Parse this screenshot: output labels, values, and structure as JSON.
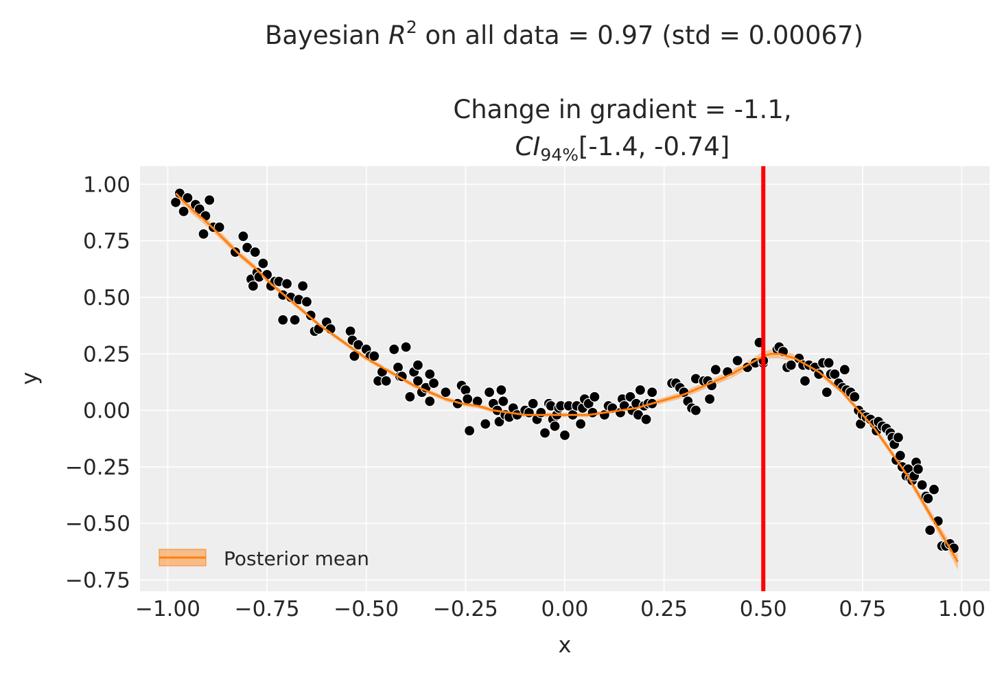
{
  "figure": {
    "suptitle_prefix": "Bayesian ",
    "suptitle_r": "R",
    "suptitle_exp": "2",
    "suptitle_rest": " on all data = 0.97 (std = 0.00067)",
    "subtitle_line1": "Change in gradient = -1.1,",
    "subtitle_ci": "CI",
    "subtitle_ci_sub": "94%",
    "subtitle_interval": "[-1.4, -0.74]"
  },
  "chart_data": {
    "type": "scatter",
    "xlabel": "x",
    "ylabel": "y",
    "xlim": [
      -1.07,
      1.07
    ],
    "ylim": [
      -0.8,
      1.08
    ],
    "xticks": [
      -1.0,
      -0.75,
      -0.5,
      -0.25,
      0.0,
      0.25,
      0.5,
      0.75,
      1.0
    ],
    "xtick_labels": [
      "−1.00",
      "−0.75",
      "−0.50",
      "−0.25",
      "0.00",
      "0.25",
      "0.50",
      "0.75",
      "1.00"
    ],
    "yticks": [
      1.0,
      0.75,
      0.5,
      0.25,
      0.0,
      -0.25,
      -0.5,
      -0.75
    ],
    "ytick_labels": [
      "1.00",
      "0.75",
      "0.50",
      "0.25",
      "0.00",
      "−0.25",
      "−0.50",
      "−0.75"
    ],
    "grid": true,
    "legend": {
      "placement": "lower-left",
      "entries": [
        "Posterior mean"
      ]
    },
    "vline": {
      "x": 0.5,
      "color": "#ff0000"
    },
    "colors": {
      "background": "#eeeeee",
      "grid": "#ffffff",
      "points": "#000000",
      "mean_line": "#ff7f0e",
      "band": "#ff7f0e"
    },
    "points": [
      [
        -0.98,
        0.92
      ],
      [
        -0.97,
        0.96
      ],
      [
        -0.96,
        0.88
      ],
      [
        -0.95,
        0.94
      ],
      [
        -0.93,
        0.91
      ],
      [
        -0.92,
        0.89
      ],
      [
        -0.91,
        0.78
      ],
      [
        -0.905,
        0.86
      ],
      [
        -0.895,
        0.93
      ],
      [
        -0.885,
        0.81
      ],
      [
        -0.87,
        0.81
      ],
      [
        -0.83,
        0.7
      ],
      [
        -0.81,
        0.77
      ],
      [
        -0.8,
        0.72
      ],
      [
        -0.79,
        0.58
      ],
      [
        -0.785,
        0.55
      ],
      [
        -0.78,
        0.7
      ],
      [
        -0.775,
        0.61
      ],
      [
        -0.77,
        0.59
      ],
      [
        -0.76,
        0.65
      ],
      [
        -0.75,
        0.6
      ],
      [
        -0.74,
        0.55
      ],
      [
        -0.73,
        0.57
      ],
      [
        -0.72,
        0.57
      ],
      [
        -0.71,
        0.51
      ],
      [
        -0.71,
        0.4
      ],
      [
        -0.7,
        0.56
      ],
      [
        -0.69,
        0.5
      ],
      [
        -0.68,
        0.4
      ],
      [
        -0.67,
        0.49
      ],
      [
        -0.66,
        0.55
      ],
      [
        -0.65,
        0.48
      ],
      [
        -0.64,
        0.42
      ],
      [
        -0.63,
        0.35
      ],
      [
        -0.62,
        0.36
      ],
      [
        -0.6,
        0.39
      ],
      [
        -0.59,
        0.36
      ],
      [
        -0.54,
        0.35
      ],
      [
        -0.535,
        0.31
      ],
      [
        -0.53,
        0.24
      ],
      [
        -0.52,
        0.29
      ],
      [
        -0.5,
        0.27
      ],
      [
        -0.49,
        0.24
      ],
      [
        -0.48,
        0.24
      ],
      [
        -0.47,
        0.13
      ],
      [
        -0.46,
        0.17
      ],
      [
        -0.45,
        0.13
      ],
      [
        -0.43,
        0.27
      ],
      [
        -0.42,
        0.19
      ],
      [
        -0.415,
        0.15
      ],
      [
        -0.41,
        0.15
      ],
      [
        -0.4,
        0.28
      ],
      [
        -0.39,
        0.06
      ],
      [
        -0.38,
        0.17
      ],
      [
        -0.37,
        0.13
      ],
      [
        -0.37,
        0.2
      ],
      [
        -0.36,
        0.08
      ],
      [
        -0.35,
        0.1
      ],
      [
        -0.34,
        0.04
      ],
      [
        -0.34,
        0.16
      ],
      [
        -0.33,
        0.12
      ],
      [
        -0.3,
        0.08
      ],
      [
        -0.27,
        0.03
      ],
      [
        -0.26,
        0.11
      ],
      [
        -0.25,
        0.09
      ],
      [
        -0.245,
        0.05
      ],
      [
        -0.24,
        -0.09
      ],
      [
        -0.22,
        0.04
      ],
      [
        -0.2,
        -0.06
      ],
      [
        -0.19,
        0.08
      ],
      [
        -0.18,
        0.03
      ],
      [
        -0.17,
        0.0
      ],
      [
        -0.165,
        -0.05
      ],
      [
        -0.16,
        0.09
      ],
      [
        -0.155,
        0.04
      ],
      [
        -0.15,
        -0.02
      ],
      [
        -0.14,
        -0.03
      ],
      [
        -0.13,
        0.01
      ],
      [
        -0.12,
        -0.02
      ],
      [
        -0.1,
        0.0
      ],
      [
        -0.09,
        -0.01
      ],
      [
        -0.08,
        0.03
      ],
      [
        -0.07,
        -0.04
      ],
      [
        -0.06,
        -0.01
      ],
      [
        -0.05,
        -0.1
      ],
      [
        -0.04,
        0.03
      ],
      [
        -0.035,
        0.02
      ],
      [
        -0.03,
        -0.04
      ],
      [
        -0.025,
        -0.07
      ],
      [
        -0.02,
        -0.02
      ],
      [
        -0.015,
        0.01
      ],
      [
        -0.01,
        0.02
      ],
      [
        0.0,
        -0.11
      ],
      [
        0.01,
        0.02
      ],
      [
        0.02,
        -0.02
      ],
      [
        0.03,
        0.02
      ],
      [
        0.04,
        -0.06
      ],
      [
        0.045,
        0.01
      ],
      [
        0.05,
        0.05
      ],
      [
        0.06,
        0.03
      ],
      [
        0.07,
        -0.01
      ],
      [
        0.075,
        0.06
      ],
      [
        0.1,
        -0.02
      ],
      [
        0.11,
        0.02
      ],
      [
        0.12,
        0.01
      ],
      [
        0.14,
        -0.01
      ],
      [
        0.145,
        0.05
      ],
      [
        0.15,
        0.02
      ],
      [
        0.165,
        0.06
      ],
      [
        0.17,
        0.0
      ],
      [
        0.18,
        0.03
      ],
      [
        0.185,
        -0.02
      ],
      [
        0.19,
        0.09
      ],
      [
        0.2,
        0.02
      ],
      [
        0.205,
        -0.04
      ],
      [
        0.21,
        0.03
      ],
      [
        0.22,
        0.03
      ],
      [
        0.22,
        0.08
      ],
      [
        0.27,
        0.12
      ],
      [
        0.28,
        0.12
      ],
      [
        0.29,
        0.1
      ],
      [
        0.3,
        0.08
      ],
      [
        0.31,
        0.04
      ],
      [
        0.32,
        0.01
      ],
      [
        0.33,
        0.0
      ],
      [
        0.33,
        0.14
      ],
      [
        0.35,
        0.13
      ],
      [
        0.36,
        0.13
      ],
      [
        0.365,
        0.05
      ],
      [
        0.37,
        0.11
      ],
      [
        0.38,
        0.18
      ],
      [
        0.41,
        0.17
      ],
      [
        0.435,
        0.22
      ],
      [
        0.46,
        0.19
      ],
      [
        0.48,
        0.21
      ],
      [
        0.49,
        0.3
      ],
      [
        0.5,
        0.21
      ],
      [
        0.5,
        0.22
      ],
      [
        0.535,
        0.27
      ],
      [
        0.54,
        0.28
      ],
      [
        0.55,
        0.26
      ],
      [
        0.56,
        0.19
      ],
      [
        0.57,
        0.2
      ],
      [
        0.59,
        0.23
      ],
      [
        0.6,
        0.2
      ],
      [
        0.605,
        0.13
      ],
      [
        0.615,
        0.2
      ],
      [
        0.63,
        0.19
      ],
      [
        0.64,
        0.16
      ],
      [
        0.65,
        0.21
      ],
      [
        0.66,
        0.08
      ],
      [
        0.665,
        0.21
      ],
      [
        0.67,
        0.16
      ],
      [
        0.68,
        0.16
      ],
      [
        0.69,
        0.12
      ],
      [
        0.7,
        0.1
      ],
      [
        0.705,
        0.18
      ],
      [
        0.71,
        0.09
      ],
      [
        0.72,
        0.08
      ],
      [
        0.73,
        0.06
      ],
      [
        0.74,
        0.0
      ],
      [
        0.745,
        -0.06
      ],
      [
        0.75,
        -0.02
      ],
      [
        0.76,
        -0.03
      ],
      [
        0.77,
        -0.04
      ],
      [
        0.78,
        -0.06
      ],
      [
        0.785,
        -0.09
      ],
      [
        0.79,
        -0.05
      ],
      [
        0.8,
        -0.07
      ],
      [
        0.81,
        -0.08
      ],
      [
        0.82,
        -0.1
      ],
      [
        0.825,
        -0.12
      ],
      [
        0.83,
        -0.15
      ],
      [
        0.835,
        -0.22
      ],
      [
        0.84,
        -0.12
      ],
      [
        0.845,
        -0.2
      ],
      [
        0.85,
        -0.25
      ],
      [
        0.86,
        -0.29
      ],
      [
        0.865,
        -0.26
      ],
      [
        0.87,
        -0.3
      ],
      [
        0.875,
        -0.31
      ],
      [
        0.88,
        -0.29
      ],
      [
        0.885,
        -0.23
      ],
      [
        0.89,
        -0.26
      ],
      [
        0.9,
        -0.33
      ],
      [
        0.91,
        -0.38
      ],
      [
        0.915,
        -0.39
      ],
      [
        0.92,
        -0.53
      ],
      [
        0.93,
        -0.35
      ],
      [
        0.94,
        -0.49
      ],
      [
        0.95,
        -0.6
      ],
      [
        0.96,
        -0.6
      ],
      [
        0.97,
        -0.59
      ],
      [
        0.98,
        -0.61
      ]
    ],
    "mean_curve": {
      "x": [
        -0.98,
        -0.94,
        -0.9,
        -0.86,
        -0.82,
        -0.78,
        -0.74,
        -0.7,
        -0.66,
        -0.62,
        -0.58,
        -0.54,
        -0.5,
        -0.46,
        -0.42,
        -0.38,
        -0.34,
        -0.3,
        -0.26,
        -0.22,
        -0.18,
        -0.14,
        -0.1,
        -0.06,
        -0.02,
        0.02,
        0.06,
        0.1,
        0.14,
        0.18,
        0.22,
        0.26,
        0.3,
        0.34,
        0.38,
        0.42,
        0.46,
        0.5,
        0.52,
        0.54,
        0.56,
        0.58,
        0.6,
        0.62,
        0.64,
        0.66,
        0.68,
        0.7,
        0.72,
        0.74,
        0.76,
        0.78,
        0.8,
        0.82,
        0.84,
        0.86,
        0.88,
        0.9,
        0.92,
        0.94,
        0.96,
        0.98,
        0.99
      ],
      "y": [
        0.96,
        0.89,
        0.83,
        0.76,
        0.69,
        0.63,
        0.56,
        0.5,
        0.44,
        0.38,
        0.33,
        0.28,
        0.23,
        0.19,
        0.15,
        0.11,
        0.08,
        0.05,
        0.03,
        0.02,
        0.0,
        -0.01,
        -0.02,
        -0.02,
        -0.02,
        -0.02,
        -0.02,
        -0.01,
        0.0,
        0.01,
        0.03,
        0.05,
        0.07,
        0.1,
        0.13,
        0.16,
        0.2,
        0.24,
        0.25,
        0.25,
        0.24,
        0.23,
        0.21,
        0.19,
        0.17,
        0.14,
        0.11,
        0.08,
        0.04,
        0.0,
        -0.04,
        -0.08,
        -0.13,
        -0.18,
        -0.23,
        -0.28,
        -0.34,
        -0.4,
        -0.46,
        -0.52,
        -0.58,
        -0.64,
        -0.67
      ],
      "band_halfwidth": [
        0.025,
        0.02,
        0.018,
        0.016,
        0.014,
        0.013,
        0.012,
        0.011,
        0.011,
        0.01,
        0.01,
        0.01,
        0.01,
        0.01,
        0.01,
        0.01,
        0.01,
        0.01,
        0.01,
        0.01,
        0.01,
        0.01,
        0.01,
        0.01,
        0.01,
        0.01,
        0.01,
        0.01,
        0.01,
        0.01,
        0.012,
        0.013,
        0.014,
        0.015,
        0.016,
        0.017,
        0.018,
        0.02,
        0.02,
        0.02,
        0.018,
        0.017,
        0.016,
        0.015,
        0.014,
        0.013,
        0.012,
        0.012,
        0.012,
        0.012,
        0.012,
        0.013,
        0.013,
        0.014,
        0.015,
        0.016,
        0.017,
        0.018,
        0.02,
        0.022,
        0.025,
        0.03,
        0.035
      ]
    }
  }
}
